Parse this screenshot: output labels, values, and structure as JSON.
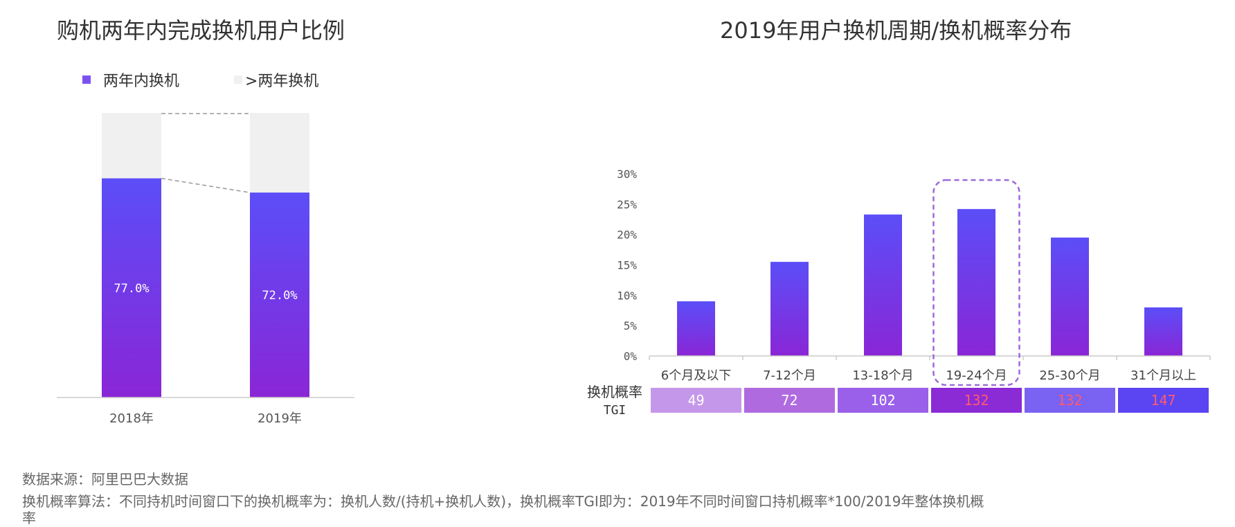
{
  "chart_data": [
    {
      "type": "bar",
      "title": "购机两年内完成换机用户比例",
      "legend": [
        {
          "name": "两年内换机",
          "color": "#7b52f0"
        },
        {
          "name": ">两年换机",
          "color": "#f0f0f0"
        }
      ],
      "legend_position": "top-left",
      "stacked": true,
      "categories": [
        "2018年",
        "2019年"
      ],
      "series": [
        {
          "name": "两年内换机",
          "values": [
            77.0,
            72.0
          ],
          "labels": [
            "77.0%",
            "72.0%"
          ]
        },
        {
          "name": ">两年换机",
          "values": [
            23.0,
            28.0
          ]
        }
      ],
      "ylim": [
        0,
        100
      ],
      "grid": false
    },
    {
      "type": "bar",
      "title": "2019年用户换机周期/换机概率分布",
      "categories": [
        "6个月及以下",
        "7-12个月",
        "13-18个月",
        "19-24个月",
        "25-30个月",
        "31个月以上"
      ],
      "values": [
        9.0,
        15.5,
        23.3,
        24.2,
        19.5,
        8.0
      ],
      "ylim": [
        0,
        30
      ],
      "yticks": [
        "0%",
        "5%",
        "10%",
        "15%",
        "20%",
        "25%",
        "30%"
      ],
      "ytick_values": [
        0,
        5,
        10,
        15,
        20,
        25,
        30
      ],
      "highlight_category": "19-24个月",
      "grid": false,
      "tgi_row": {
        "label_line1": "换机概率",
        "label_line2": "TGI",
        "values": [
          "49",
          "72",
          "102",
          "132",
          "132",
          "147"
        ],
        "cell_colors": [
          "#c597ea",
          "#b06ae0",
          "#9a60ea",
          "#8a2bd6",
          "#7a62f2",
          "#5b45f2"
        ],
        "text_colors": [
          "#ffffff",
          "#ffffff",
          "#ffffff",
          "#ff5a6e",
          "#ff5a6e",
          "#ff5a6e"
        ]
      }
    }
  ],
  "footnotes": [
    "数据来源：阿里巴巴大数据",
    "换机概率算法：不同持机时间窗口下的换机概率为：换机人数/(持机+换机人数)，换机概率TGI即为：2019年不同时间窗口持机概率*100/2019年整体换机概",
    "率"
  ],
  "colors": {
    "bar_top": "#5b4ef8",
    "bar_bottom": "#8a26d6",
    "rest_segment": "#f0f0f0",
    "highlight_border": "#9b6ad8"
  }
}
